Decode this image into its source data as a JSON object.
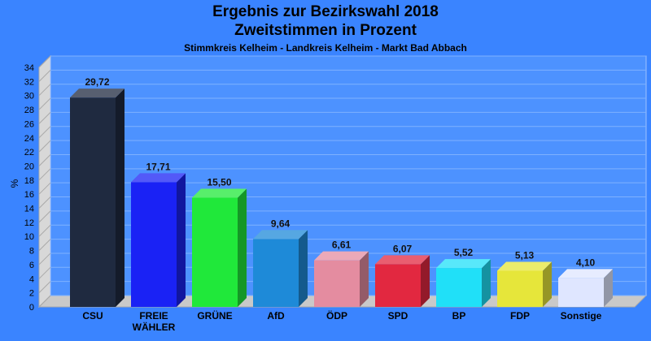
{
  "title": "Ergebnis zur Bezirkswahl 2018",
  "subtitle": "Zweitstimmen in Prozent",
  "caption": "Stimmkreis Kelheim - Landkreis Kelheim - Markt Bad Abbach",
  "chart_data": {
    "type": "bar",
    "ylabel": "%",
    "ylim": [
      0,
      34
    ],
    "ytick_step": 2,
    "grid": true,
    "categories": [
      "CSU",
      "FREIE WÄHLER",
      "GRÜNE",
      "AfD",
      "ÖDP",
      "SPD",
      "BP",
      "FDP",
      "Sonstige"
    ],
    "category_lines": [
      [
        "CSU"
      ],
      [
        "FREIE",
        "WÄHLER"
      ],
      [
        "GRÜNE"
      ],
      [
        "AfD"
      ],
      [
        "ÖDP"
      ],
      [
        "SPD"
      ],
      [
        "BP"
      ],
      [
        "FDP"
      ],
      [
        "Sonstige"
      ]
    ],
    "values": [
      29.72,
      17.71,
      15.5,
      9.64,
      6.61,
      6.07,
      5.52,
      5.13,
      4.1
    ],
    "value_labels": [
      "29,72",
      "17,71",
      "15,50",
      "9,64",
      "6,61",
      "6,07",
      "5,52",
      "5,13",
      "4,10"
    ],
    "colors": [
      "#1f2a40",
      "#1a22f5",
      "#20e83a",
      "#1e8ad8",
      "#e48ca0",
      "#e22840",
      "#20e0f8",
      "#e6e63a",
      "#dfe6ff"
    ]
  }
}
